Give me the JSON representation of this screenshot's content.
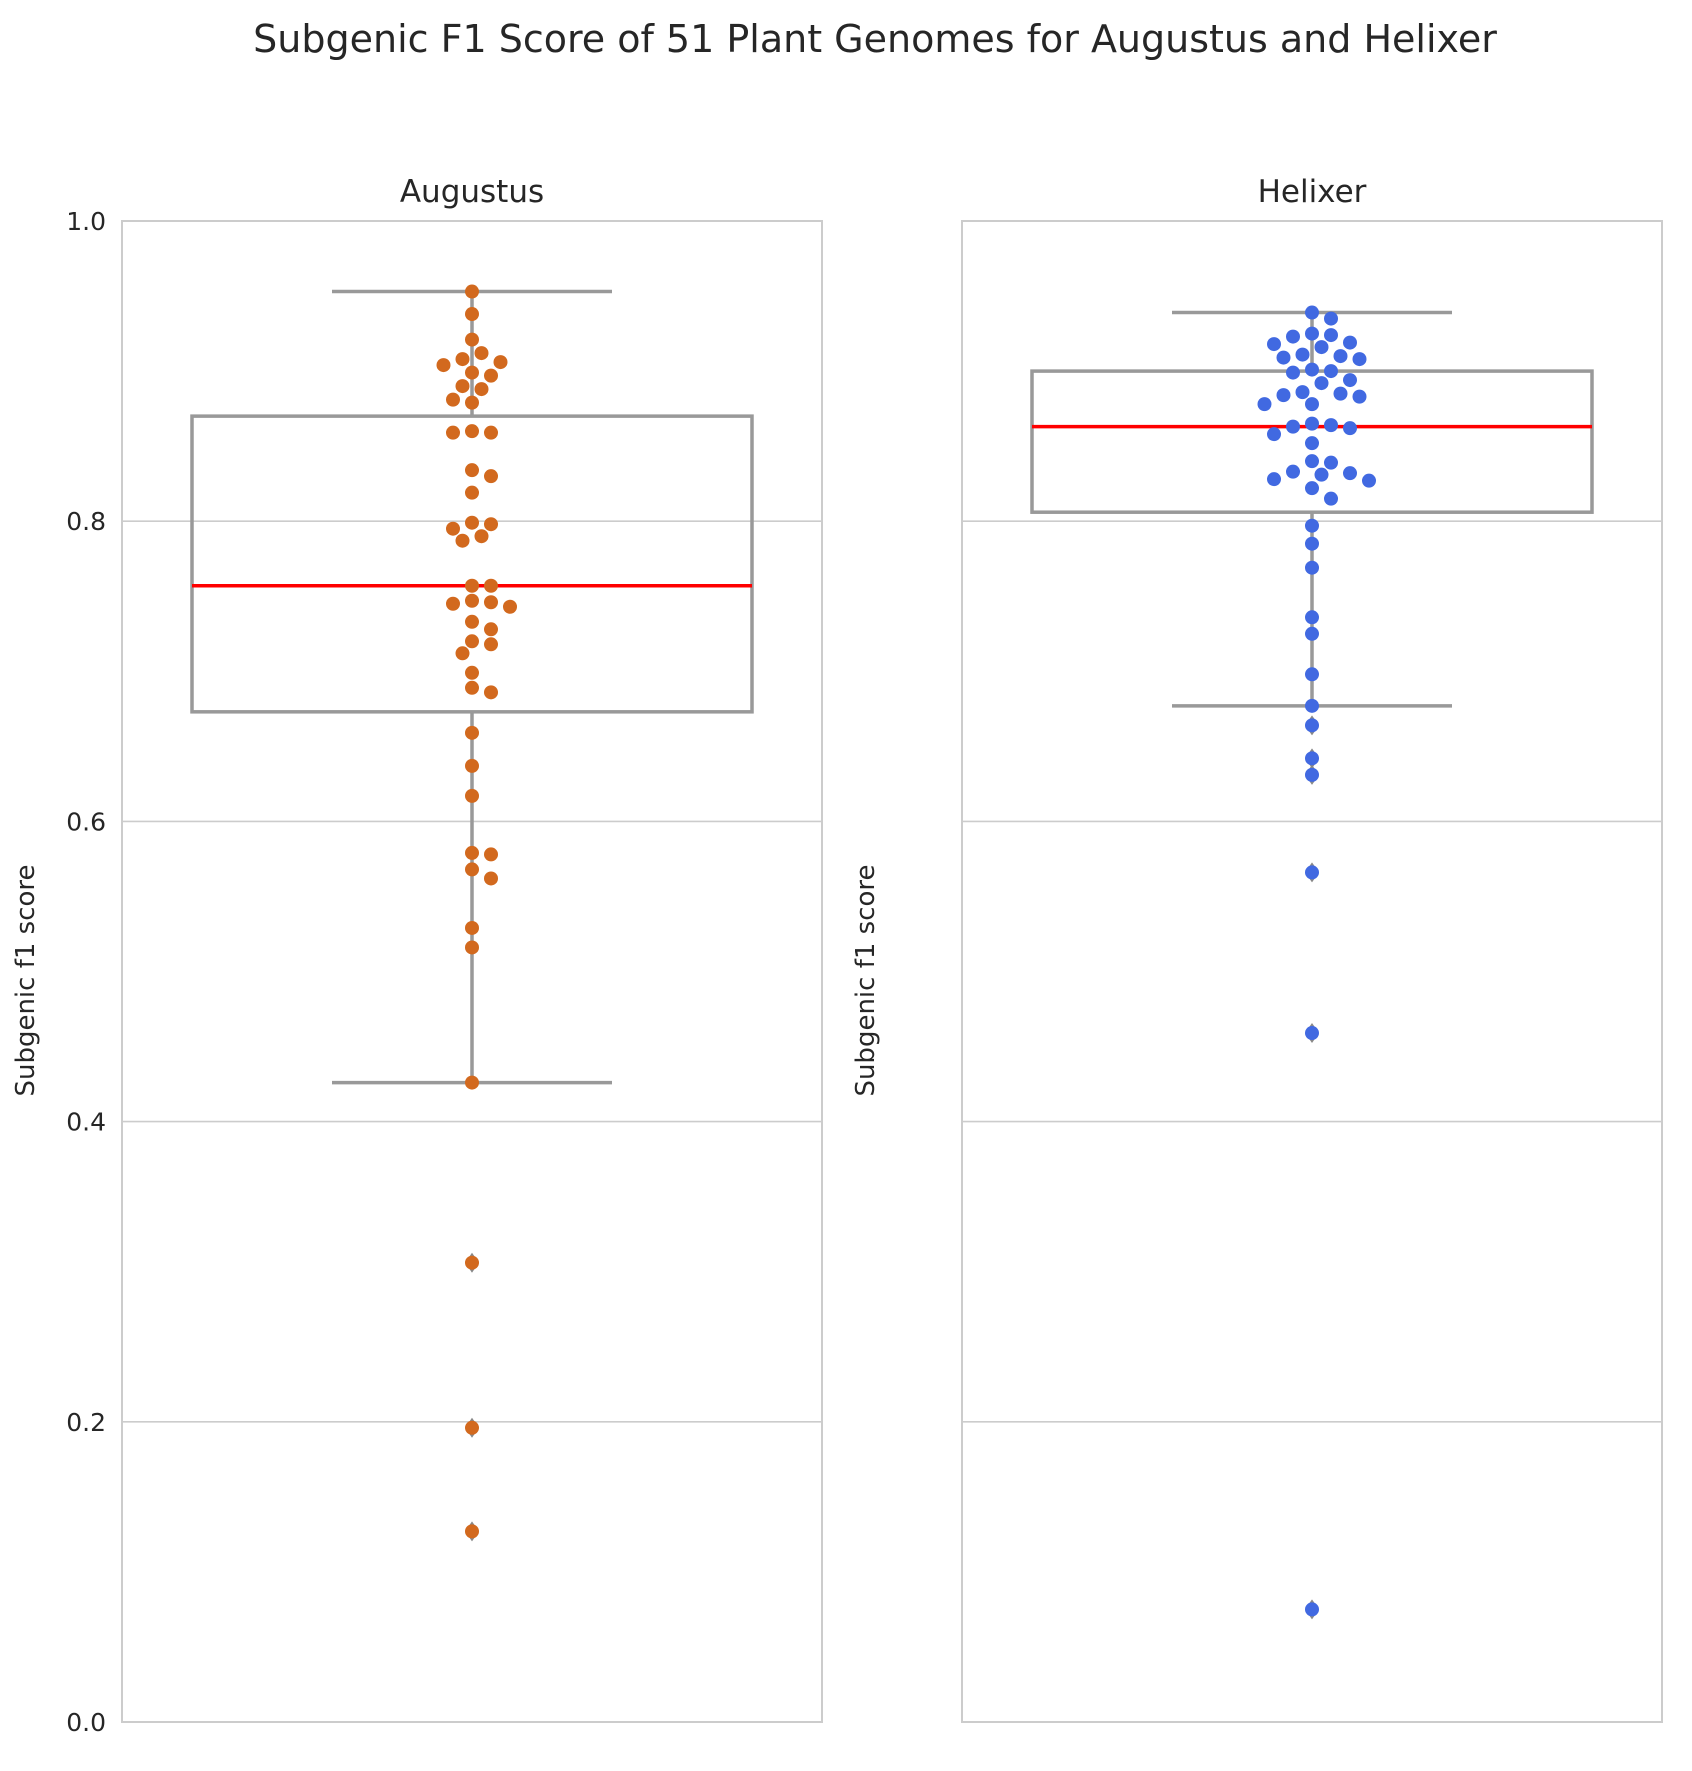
{
  "chart_data": {
    "type": "box",
    "title": "Subgenic F1 Score of 51 Plant Genomes for Augustus and Helixer",
    "ylim": [
      0,
      1
    ],
    "yticks": [
      "0.0",
      "0.2",
      "0.4",
      "0.6",
      "0.8",
      "1.0"
    ],
    "grid": true,
    "panels": [
      {
        "name": "Augustus",
        "ylabel": "Subgenic f1 score",
        "color": "#d2691e",
        "box": {
          "q1": 0.673,
          "median": 0.757,
          "q3": 0.87,
          "whisker_low": 0.426,
          "whisker_high": 0.953
        },
        "outliers": [
          0.306,
          0.196,
          0.127
        ],
        "points": [
          0.953,
          0.938,
          0.921,
          0.912,
          0.908,
          0.906,
          0.904,
          0.899,
          0.897,
          0.89,
          0.888,
          0.881,
          0.879,
          0.86,
          0.859,
          0.859,
          0.834,
          0.83,
          0.819,
          0.799,
          0.798,
          0.795,
          0.79,
          0.787,
          0.757,
          0.757,
          0.747,
          0.746,
          0.745,
          0.743,
          0.733,
          0.728,
          0.72,
          0.718,
          0.712,
          0.699,
          0.689,
          0.686,
          0.659,
          0.637,
          0.617,
          0.579,
          0.578,
          0.568,
          0.562,
          0.529,
          0.516,
          0.426,
          0.306,
          0.196,
          0.127
        ]
      },
      {
        "name": "Helixer",
        "ylabel": "Subgenic f1 score",
        "color": "#4169e1",
        "box": {
          "q1": 0.806,
          "median": 0.863,
          "q3": 0.9,
          "whisker_low": 0.677,
          "whisker_high": 0.939
        },
        "outliers": [
          0.664,
          0.642,
          0.631,
          0.566,
          0.459,
          0.075
        ],
        "points": [
          0.939,
          0.935,
          0.925,
          0.924,
          0.923,
          0.919,
          0.918,
          0.916,
          0.911,
          0.91,
          0.909,
          0.908,
          0.901,
          0.9,
          0.899,
          0.894,
          0.892,
          0.886,
          0.885,
          0.884,
          0.883,
          0.878,
          0.878,
          0.865,
          0.864,
          0.863,
          0.862,
          0.858,
          0.852,
          0.84,
          0.839,
          0.833,
          0.832,
          0.831,
          0.828,
          0.827,
          0.822,
          0.815,
          0.797,
          0.785,
          0.769,
          0.736,
          0.725,
          0.698,
          0.677,
          0.664,
          0.642,
          0.631,
          0.566,
          0.459,
          0.075
        ]
      }
    ]
  }
}
